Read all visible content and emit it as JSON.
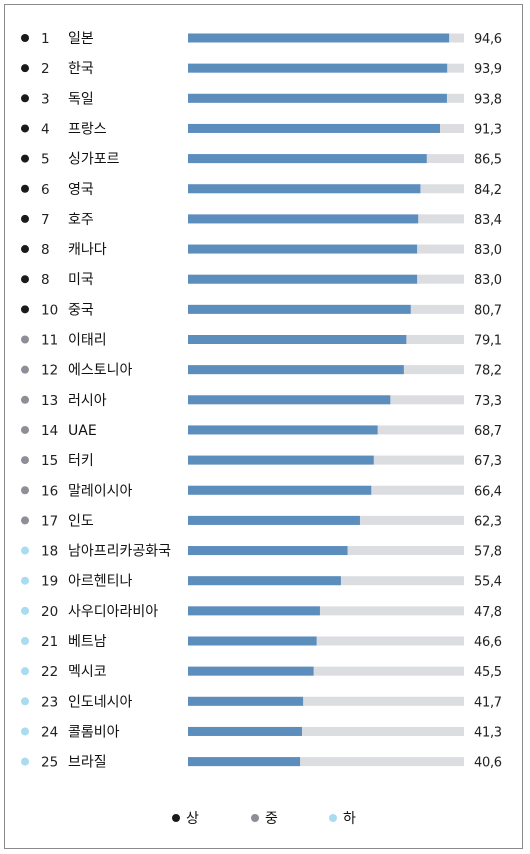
{
  "chart_data": {
    "type": "bar",
    "orientation": "horizontal",
    "xlim": [
      0,
      100
    ],
    "grid": false,
    "legend_position": "bottom",
    "tiers": {
      "high": {
        "label": "상",
        "color": "#1a1a1a"
      },
      "middle": {
        "label": "중",
        "color": "#8e8e96"
      },
      "low": {
        "label": "하",
        "color": "#a9dcef"
      }
    },
    "bar_color": "#5b8dbd",
    "track_color": "#dcdde1",
    "rows": [
      {
        "rank": "1",
        "name": "일본",
        "value": 94.6,
        "value_label": "94,6",
        "tier": "high"
      },
      {
        "rank": "2",
        "name": "한국",
        "value": 93.9,
        "value_label": "93,9",
        "tier": "high"
      },
      {
        "rank": "3",
        "name": "독일",
        "value": 93.8,
        "value_label": "93,8",
        "tier": "high"
      },
      {
        "rank": "4",
        "name": "프랑스",
        "value": 91.3,
        "value_label": "91,3",
        "tier": "high"
      },
      {
        "rank": "5",
        "name": "싱가포르",
        "value": 86.5,
        "value_label": "86,5",
        "tier": "high"
      },
      {
        "rank": "6",
        "name": "영국",
        "value": 84.2,
        "value_label": "84,2",
        "tier": "high"
      },
      {
        "rank": "7",
        "name": "호주",
        "value": 83.4,
        "value_label": "83,4",
        "tier": "high"
      },
      {
        "rank": "8",
        "name": "캐나다",
        "value": 83.0,
        "value_label": "83,0",
        "tier": "high"
      },
      {
        "rank": "8",
        "name": "미국",
        "value": 83.0,
        "value_label": "83,0",
        "tier": "high"
      },
      {
        "rank": "10",
        "name": "중국",
        "value": 80.7,
        "value_label": "80,7",
        "tier": "high"
      },
      {
        "rank": "11",
        "name": "이태리",
        "value": 79.1,
        "value_label": "79,1",
        "tier": "middle"
      },
      {
        "rank": "12",
        "name": "에스토니아",
        "value": 78.2,
        "value_label": "78,2",
        "tier": "middle"
      },
      {
        "rank": "13",
        "name": "러시아",
        "value": 73.3,
        "value_label": "73,3",
        "tier": "middle"
      },
      {
        "rank": "14",
        "name": "UAE",
        "value": 68.7,
        "value_label": "68,7",
        "tier": "middle"
      },
      {
        "rank": "15",
        "name": "터키",
        "value": 67.3,
        "value_label": "67,3",
        "tier": "middle"
      },
      {
        "rank": "16",
        "name": "말레이시아",
        "value": 66.4,
        "value_label": "66,4",
        "tier": "middle"
      },
      {
        "rank": "17",
        "name": "인도",
        "value": 62.3,
        "value_label": "62,3",
        "tier": "middle"
      },
      {
        "rank": "18",
        "name": "남아프리카공화국",
        "value": 57.8,
        "value_label": "57,8",
        "tier": "low"
      },
      {
        "rank": "19",
        "name": "아르헨티나",
        "value": 55.4,
        "value_label": "55,4",
        "tier": "low"
      },
      {
        "rank": "20",
        "name": "사우디아라비아",
        "value": 47.8,
        "value_label": "47,8",
        "tier": "low"
      },
      {
        "rank": "21",
        "name": "베트남",
        "value": 46.6,
        "value_label": "46,6",
        "tier": "low"
      },
      {
        "rank": "22",
        "name": "멕시코",
        "value": 45.5,
        "value_label": "45,5",
        "tier": "low"
      },
      {
        "rank": "23",
        "name": "인도네시아",
        "value": 41.7,
        "value_label": "41,7",
        "tier": "low"
      },
      {
        "rank": "24",
        "name": "콜롬비아",
        "value": 41.3,
        "value_label": "41,3",
        "tier": "low"
      },
      {
        "rank": "25",
        "name": "브라질",
        "value": 40.6,
        "value_label": "40,6",
        "tier": "low"
      }
    ],
    "legend": [
      {
        "tier": "high",
        "label": "상"
      },
      {
        "tier": "middle",
        "label": "중"
      },
      {
        "tier": "low",
        "label": "하"
      }
    ]
  }
}
